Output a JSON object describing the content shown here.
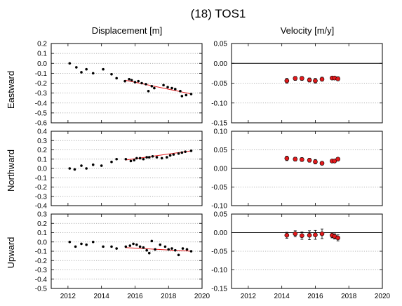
{
  "chart_data": {
    "type": "scatter",
    "title": "(18) TOS1",
    "column_titles": [
      "Displacement [m]",
      "Velocity [m/y]"
    ],
    "row_labels": [
      "Eastward",
      "Northward",
      "Upward"
    ],
    "x_ticks": [
      "2012",
      "2014",
      "2016",
      "2018",
      "2020"
    ],
    "xlim": [
      2011,
      2020
    ],
    "grid": "horizontal dotted",
    "colors": {
      "points": "#000000",
      "trend": "#e31a1c",
      "velocity_marker": "#e31a1c",
      "zero_line": "#000000"
    },
    "panels": [
      {
        "name": "east-displacement",
        "ylim": [
          -0.6,
          0.2
        ],
        "y_ticks": [
          "0.2",
          "0.1",
          "0.0",
          "-0.1",
          "-0.2",
          "-0.3",
          "-0.4",
          "-0.5",
          "-0.6"
        ],
        "points": [
          [
            2012.1,
            0.0
          ],
          [
            2012.5,
            -0.04
          ],
          [
            2012.8,
            -0.09
          ],
          [
            2013.1,
            -0.06
          ],
          [
            2013.5,
            -0.1
          ],
          [
            2014.1,
            -0.06
          ],
          [
            2014.6,
            -0.11
          ],
          [
            2014.9,
            -0.15
          ],
          [
            2015.4,
            -0.18
          ],
          [
            2015.65,
            -0.16
          ],
          [
            2015.8,
            -0.17
          ],
          [
            2016.0,
            -0.19
          ],
          [
            2016.2,
            -0.18
          ],
          [
            2016.4,
            -0.2
          ],
          [
            2016.65,
            -0.21
          ],
          [
            2016.8,
            -0.28
          ],
          [
            2017.0,
            -0.23
          ],
          [
            2017.15,
            -0.25
          ],
          [
            2017.7,
            -0.22
          ],
          [
            2017.95,
            -0.24
          ],
          [
            2018.2,
            -0.25
          ],
          [
            2018.4,
            -0.26
          ],
          [
            2018.7,
            -0.28
          ],
          [
            2018.8,
            -0.33
          ],
          [
            2019.05,
            -0.32
          ],
          [
            2019.35,
            -0.31
          ]
        ],
        "trend": [
          [
            2015.4,
            -0.17
          ],
          [
            2019.4,
            -0.31
          ]
        ]
      },
      {
        "name": "east-velocity",
        "ylim": [
          -0.15,
          0.05
        ],
        "y_ticks": [
          "0.05",
          "0.00",
          "-0.05",
          "-0.10",
          "-0.15"
        ],
        "points": [
          [
            2014.3,
            -0.044,
            0.006
          ],
          [
            2014.8,
            -0.038,
            0.005
          ],
          [
            2015.2,
            -0.038,
            0.005
          ],
          [
            2015.65,
            -0.042,
            0.005
          ],
          [
            2016.0,
            -0.044,
            0.006
          ],
          [
            2016.4,
            -0.04,
            0.005
          ],
          [
            2017.0,
            -0.037,
            0.004
          ],
          [
            2017.15,
            -0.037,
            0.004
          ],
          [
            2017.35,
            -0.039,
            0.005
          ]
        ]
      },
      {
        "name": "north-displacement",
        "ylim": [
          -0.4,
          0.4
        ],
        "y_ticks": [
          "0.4",
          "0.3",
          "0.2",
          "0.1",
          "0.0",
          "-0.1",
          "-0.2",
          "-0.3",
          "-0.4"
        ],
        "points": [
          [
            2012.1,
            0.0
          ],
          [
            2012.4,
            -0.01
          ],
          [
            2012.8,
            0.03
          ],
          [
            2013.1,
            0.0
          ],
          [
            2013.5,
            0.04
          ],
          [
            2014.0,
            0.03
          ],
          [
            2014.6,
            0.07
          ],
          [
            2014.9,
            0.1
          ],
          [
            2015.45,
            0.1
          ],
          [
            2015.75,
            0.08
          ],
          [
            2015.95,
            0.09
          ],
          [
            2016.1,
            0.11
          ],
          [
            2016.3,
            0.11
          ],
          [
            2016.5,
            0.1
          ],
          [
            2016.7,
            0.12
          ],
          [
            2016.85,
            0.12
          ],
          [
            2017.05,
            0.13
          ],
          [
            2017.3,
            0.12
          ],
          [
            2017.6,
            0.11
          ],
          [
            2017.9,
            0.12
          ],
          [
            2018.1,
            0.14
          ],
          [
            2018.3,
            0.15
          ],
          [
            2018.6,
            0.16
          ],
          [
            2018.8,
            0.17
          ],
          [
            2019.0,
            0.18
          ],
          [
            2019.35,
            0.19
          ]
        ],
        "trend": [
          [
            2015.4,
            0.09
          ],
          [
            2019.4,
            0.19
          ]
        ]
      },
      {
        "name": "north-velocity",
        "ylim": [
          -0.1,
          0.1
        ],
        "y_ticks": [
          "0.10",
          "0.05",
          "0.00",
          "-0.05",
          "-0.10"
        ],
        "points": [
          [
            2014.3,
            0.027,
            0.006
          ],
          [
            2014.8,
            0.025,
            0.005
          ],
          [
            2015.2,
            0.024,
            0.005
          ],
          [
            2015.65,
            0.022,
            0.005
          ],
          [
            2016.0,
            0.018,
            0.006
          ],
          [
            2016.4,
            0.014,
            0.005
          ],
          [
            2017.0,
            0.02,
            0.004
          ],
          [
            2017.15,
            0.02,
            0.004
          ],
          [
            2017.35,
            0.025,
            0.004
          ]
        ]
      },
      {
        "name": "up-displacement",
        "ylim": [
          -0.5,
          0.3
        ],
        "y_ticks": [
          "0.3",
          "0.2",
          "0.1",
          "0.0",
          "-0.1",
          "-0.2",
          "-0.3",
          "-0.4",
          "-0.5"
        ],
        "points": [
          [
            2012.1,
            0.0
          ],
          [
            2012.45,
            -0.05
          ],
          [
            2012.8,
            -0.02
          ],
          [
            2013.1,
            -0.03
          ],
          [
            2013.5,
            0.0
          ],
          [
            2014.1,
            -0.05
          ],
          [
            2014.6,
            -0.05
          ],
          [
            2014.9,
            -0.07
          ],
          [
            2015.45,
            -0.05
          ],
          [
            2015.7,
            -0.04
          ],
          [
            2015.9,
            -0.02
          ],
          [
            2016.1,
            -0.03
          ],
          [
            2016.3,
            -0.05
          ],
          [
            2016.5,
            -0.06
          ],
          [
            2016.7,
            -0.09
          ],
          [
            2016.85,
            -0.12
          ],
          [
            2017.0,
            0.01
          ],
          [
            2017.2,
            -0.08
          ],
          [
            2017.5,
            -0.03
          ],
          [
            2017.8,
            -0.05
          ],
          [
            2018.0,
            -0.08
          ],
          [
            2018.2,
            -0.07
          ],
          [
            2018.4,
            -0.09
          ],
          [
            2018.6,
            -0.14
          ],
          [
            2018.85,
            -0.07
          ],
          [
            2019.1,
            -0.08
          ],
          [
            2019.35,
            -0.1
          ]
        ],
        "trend": [
          [
            2015.4,
            -0.06
          ],
          [
            2019.4,
            -0.1
          ]
        ]
      },
      {
        "name": "up-velocity",
        "ylim": [
          -0.15,
          0.05
        ],
        "y_ticks": [
          "0.05",
          "0.00",
          "-0.05",
          "-0.10",
          "-0.15"
        ],
        "points": [
          [
            2014.3,
            -0.007,
            0.008
          ],
          [
            2014.8,
            -0.003,
            0.008
          ],
          [
            2015.2,
            -0.008,
            0.01
          ],
          [
            2015.65,
            -0.007,
            0.012
          ],
          [
            2016.0,
            -0.006,
            0.012
          ],
          [
            2016.4,
            -0.003,
            0.013
          ],
          [
            2017.0,
            -0.007,
            0.007
          ],
          [
            2017.15,
            -0.01,
            0.007
          ],
          [
            2017.35,
            -0.014,
            0.008
          ]
        ]
      }
    ]
  }
}
